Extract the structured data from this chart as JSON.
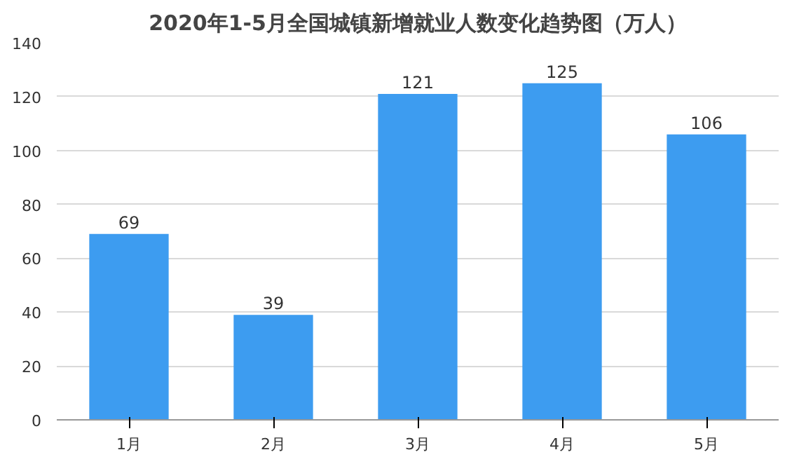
{
  "chart_data": {
    "type": "bar",
    "title": "2020年1-5月全国城镇新增就业人数变化趋势图（万人）",
    "categories": [
      "1月",
      "2月",
      "3月",
      "4月",
      "5月"
    ],
    "values": [
      69,
      39,
      121,
      125,
      106
    ],
    "color": "#3d9cf0",
    "ylim": [
      0,
      140
    ],
    "yticks": [
      0,
      20,
      40,
      60,
      80,
      100,
      120,
      140
    ],
    "grid": "y",
    "data_labels": true
  }
}
